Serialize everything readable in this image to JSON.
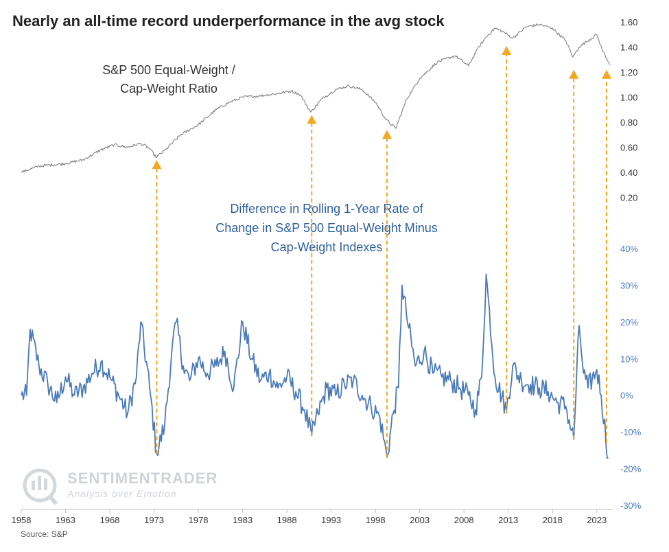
{
  "title": "Nearly an all-time record underperformance in the avg stock",
  "source": "Source: S&P",
  "watermark": {
    "brand": "SENTIMENTRADER",
    "tagline": "Analysis over Emotion"
  },
  "colors": {
    "ratio_line": "#808080",
    "diff_line": "#4a7ab8",
    "arrow": "#f5a623",
    "annotation_gray": "#333333",
    "annotation_blue": "#2e5f9e",
    "right_axis_top": "#333333",
    "right_axis_bottom": "#4a7ab8"
  },
  "chart_data": [
    {
      "type": "line",
      "name": "ratio",
      "label_line1": "S&P 500 Equal-Weight /",
      "label_line2": "Cap-Weight Ratio",
      "ylim": [
        0.0,
        1.6
      ],
      "yticks": [
        "1.60",
        "1.40",
        "1.20",
        "1.00",
        "0.80",
        "0.60",
        "0.40",
        "0.20"
      ],
      "x": [
        1958,
        1960,
        1963,
        1965,
        1967,
        1968.5,
        1970,
        1971.5,
        1972.5,
        1973.2,
        1974.3,
        1976,
        1978,
        1980,
        1981.5,
        1983,
        1985,
        1987,
        1988.5,
        1989.5,
        1990.7,
        1992,
        1993.5,
        1995,
        1996.5,
        1998,
        1999.2,
        2000.3,
        2001.5,
        2003,
        2005,
        2007,
        2008.5,
        2009.5,
        2010.5,
        2011.5,
        2012.5,
        2013.5,
        2015,
        2016.5,
        2018,
        2019.5,
        2020.3,
        2021,
        2022,
        2023,
        2023.6,
        2024.5
      ],
      "values": [
        0.4,
        0.45,
        0.47,
        0.5,
        0.58,
        0.62,
        0.6,
        0.63,
        0.59,
        0.52,
        0.58,
        0.7,
        0.78,
        0.9,
        0.96,
        1.0,
        1.01,
        1.03,
        1.05,
        1.02,
        0.88,
        0.99,
        1.06,
        1.09,
        1.06,
        0.96,
        0.82,
        0.75,
        0.98,
        1.15,
        1.28,
        1.33,
        1.25,
        1.38,
        1.48,
        1.55,
        1.52,
        1.47,
        1.56,
        1.58,
        1.55,
        1.45,
        1.32,
        1.4,
        1.45,
        1.5,
        1.38,
        1.26
      ]
    },
    {
      "type": "line",
      "name": "difference",
      "label_line1": "Difference in Rolling 1-Year Rate of",
      "label_line2": "Change in S&P 500 Equal-Weight Minus",
      "label_line3": "Cap-Weight Indexes",
      "ylim": [
        -30,
        40
      ],
      "yticks": [
        "40%",
        "30%",
        "20%",
        "10%",
        "0%",
        "-10%",
        "-20%",
        "-30%"
      ],
      "x": [
        1958,
        1958.6,
        1959,
        1960,
        1961,
        1962,
        1963,
        1964,
        1965,
        1966,
        1967,
        1968,
        1969,
        1970,
        1971,
        1971.5,
        1972.5,
        1973.3,
        1974.2,
        1975,
        1975.5,
        1976.3,
        1977,
        1978,
        1979,
        1980,
        1981,
        1982,
        1983,
        1984,
        1985,
        1986,
        1987,
        1988,
        1989,
        1990,
        1990.8,
        1991.5,
        1992.5,
        1993.5,
        1994.5,
        1995.5,
        1996.5,
        1997.5,
        1998.5,
        1999.3,
        2000,
        2000.6,
        2001,
        2001.5,
        2002.5,
        2003.5,
        2004.5,
        2005.5,
        2006.5,
        2007.5,
        2008.5,
        2009.3,
        2010,
        2010.5,
        2011.5,
        2012.8,
        2013.5,
        2014.5,
        2015.5,
        2016.5,
        2017.5,
        2018.5,
        2019.5,
        2020.4,
        2021,
        2021.5,
        2022,
        2023,
        2023.5,
        2024.3
      ],
      "values": [
        0,
        0,
        18,
        8,
        3,
        -2,
        5,
        0,
        2,
        6,
        9,
        5,
        0,
        -5,
        5,
        20,
        2,
        -16,
        -8,
        12,
        20,
        8,
        4,
        10,
        6,
        8,
        12,
        2,
        20,
        10,
        4,
        6,
        2,
        5,
        1,
        -4,
        -11,
        -5,
        2,
        0,
        3,
        4,
        0,
        -3,
        -6,
        -17,
        -5,
        2,
        30,
        22,
        8,
        12,
        6,
        5,
        4,
        2,
        0,
        -4,
        5,
        33,
        5,
        -4,
        8,
        4,
        3,
        2,
        1,
        -2,
        -3,
        -12,
        19,
        6,
        2,
        7,
        0,
        -17
      ]
    }
  ],
  "x_axis": {
    "xlim": [
      1958,
      2024.8
    ],
    "ticks": [
      1958,
      1963,
      1968,
      1973,
      1978,
      1983,
      1988,
      1993,
      1998,
      2003,
      2008,
      2013,
      2018,
      2023
    ],
    "tick_labels": [
      "1958",
      "1963",
      "1968",
      "1973",
      "1978",
      "1983",
      "1988",
      "1993",
      "1998",
      "2003",
      "2008",
      "2013",
      "2018",
      "2023"
    ]
  },
  "arrows": [
    {
      "year": 1973.3,
      "ratio_tip": 0.52,
      "diff_start": -16
    },
    {
      "year": 1990.8,
      "ratio_tip": 0.88,
      "diff_start": -11
    },
    {
      "year": 1999.3,
      "ratio_tip": 0.76,
      "diff_start": -17
    },
    {
      "year": 2012.8,
      "ratio_tip": 1.43,
      "diff_start": -5
    },
    {
      "year": 2020.4,
      "ratio_tip": 1.24,
      "diff_start": -12
    },
    {
      "year": 2024.1,
      "ratio_tip": 1.24,
      "diff_start": -13
    }
  ]
}
